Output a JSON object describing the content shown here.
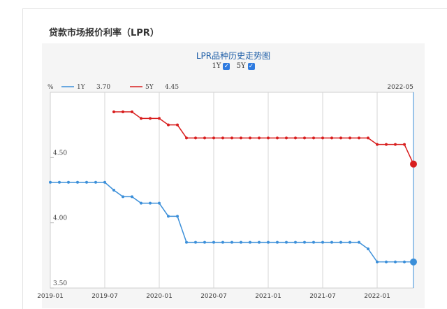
{
  "page": {
    "title": "贷款市场报价利率（LPR）"
  },
  "chart_data": {
    "type": "line",
    "title": "LPR品种历史走势图",
    "unit_label": "%",
    "date_label": "2022-05",
    "toggles": [
      {
        "label": "1Y",
        "checked": true
      },
      {
        "label": "5Y",
        "checked": true
      }
    ],
    "x_ticks": [
      "2019-01",
      "2019-07",
      "2020-01",
      "2020-07",
      "2021-01",
      "2021-07",
      "2022-01"
    ],
    "y_ticks": [
      "3.50",
      "4.00",
      "4.50"
    ],
    "xlim": [
      "2019-01",
      "2022-05"
    ],
    "ylim": [
      3.5,
      5.0
    ],
    "grid": "vertical",
    "legend_position": "top-left",
    "series": [
      {
        "name": "1Y",
        "latest": "3.70",
        "color": "#3b8fd9",
        "points": [
          [
            "2019-01",
            4.31
          ],
          [
            "2019-02",
            4.31
          ],
          [
            "2019-03",
            4.31
          ],
          [
            "2019-04",
            4.31
          ],
          [
            "2019-05",
            4.31
          ],
          [
            "2019-06",
            4.31
          ],
          [
            "2019-07",
            4.31
          ],
          [
            "2019-08",
            4.25
          ],
          [
            "2019-09",
            4.2
          ],
          [
            "2019-10",
            4.2
          ],
          [
            "2019-11",
            4.15
          ],
          [
            "2019-12",
            4.15
          ],
          [
            "2020-01",
            4.15
          ],
          [
            "2020-02",
            4.05
          ],
          [
            "2020-03",
            4.05
          ],
          [
            "2020-04",
            3.85
          ],
          [
            "2020-05",
            3.85
          ],
          [
            "2020-06",
            3.85
          ],
          [
            "2020-07",
            3.85
          ],
          [
            "2020-08",
            3.85
          ],
          [
            "2020-09",
            3.85
          ],
          [
            "2020-10",
            3.85
          ],
          [
            "2020-11",
            3.85
          ],
          [
            "2020-12",
            3.85
          ],
          [
            "2021-01",
            3.85
          ],
          [
            "2021-02",
            3.85
          ],
          [
            "2021-03",
            3.85
          ],
          [
            "2021-04",
            3.85
          ],
          [
            "2021-05",
            3.85
          ],
          [
            "2021-06",
            3.85
          ],
          [
            "2021-07",
            3.85
          ],
          [
            "2021-08",
            3.85
          ],
          [
            "2021-09",
            3.85
          ],
          [
            "2021-10",
            3.85
          ],
          [
            "2021-11",
            3.85
          ],
          [
            "2021-12",
            3.8
          ],
          [
            "2022-01",
            3.7
          ],
          [
            "2022-02",
            3.7
          ],
          [
            "2022-03",
            3.7
          ],
          [
            "2022-04",
            3.7
          ],
          [
            "2022-05",
            3.7
          ]
        ]
      },
      {
        "name": "5Y",
        "latest": "4.45",
        "color": "#d81e1e",
        "points": [
          [
            "2019-08",
            4.85
          ],
          [
            "2019-09",
            4.85
          ],
          [
            "2019-10",
            4.85
          ],
          [
            "2019-11",
            4.8
          ],
          [
            "2019-12",
            4.8
          ],
          [
            "2020-01",
            4.8
          ],
          [
            "2020-02",
            4.75
          ],
          [
            "2020-03",
            4.75
          ],
          [
            "2020-04",
            4.65
          ],
          [
            "2020-05",
            4.65
          ],
          [
            "2020-06",
            4.65
          ],
          [
            "2020-07",
            4.65
          ],
          [
            "2020-08",
            4.65
          ],
          [
            "2020-09",
            4.65
          ],
          [
            "2020-10",
            4.65
          ],
          [
            "2020-11",
            4.65
          ],
          [
            "2020-12",
            4.65
          ],
          [
            "2021-01",
            4.65
          ],
          [
            "2021-02",
            4.65
          ],
          [
            "2021-03",
            4.65
          ],
          [
            "2021-04",
            4.65
          ],
          [
            "2021-05",
            4.65
          ],
          [
            "2021-06",
            4.65
          ],
          [
            "2021-07",
            4.65
          ],
          [
            "2021-08",
            4.65
          ],
          [
            "2021-09",
            4.65
          ],
          [
            "2021-10",
            4.65
          ],
          [
            "2021-11",
            4.65
          ],
          [
            "2021-12",
            4.65
          ],
          [
            "2022-01",
            4.6
          ],
          [
            "2022-02",
            4.6
          ],
          [
            "2022-03",
            4.6
          ],
          [
            "2022-04",
            4.6
          ],
          [
            "2022-05",
            4.45
          ]
        ]
      }
    ]
  }
}
